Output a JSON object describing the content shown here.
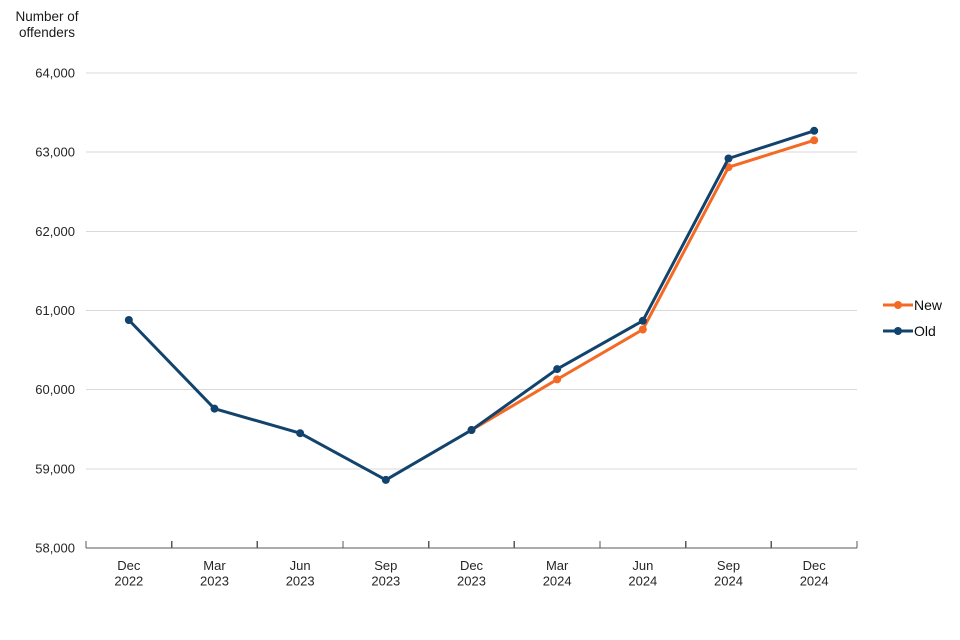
{
  "chart_data": {
    "type": "line",
    "title": "",
    "y_axis_title": "Number of\noffenders",
    "xlabel": "",
    "ylabel": "Number of offenders",
    "categories": [
      "Dec 2022",
      "Mar 2023",
      "Jun 2023",
      "Sep 2023",
      "Dec 2023",
      "Mar 2024",
      "Jun 2024",
      "Sep 2024",
      "Dec 2024"
    ],
    "series": [
      {
        "name": "New",
        "color": "#F46A25",
        "values": [
          null,
          null,
          null,
          null,
          59490,
          60130,
          60760,
          62810,
          63150
        ]
      },
      {
        "name": "Old",
        "color": "#12436D",
        "values": [
          60880,
          59760,
          59450,
          58860,
          59490,
          60260,
          60870,
          62920,
          63270
        ]
      }
    ],
    "y_ticks": [
      {
        "value": 58000,
        "label": "58,000"
      },
      {
        "value": 59000,
        "label": "59,000"
      },
      {
        "value": 60000,
        "label": "60,000"
      },
      {
        "value": 61000,
        "label": "61,000"
      },
      {
        "value": 62000,
        "label": "62,000"
      },
      {
        "value": 63000,
        "label": "63,000"
      },
      {
        "value": 64000,
        "label": "64,000"
      }
    ],
    "ylim": [
      58000,
      64000
    ],
    "grid": "horizontal",
    "legend_position": "right"
  },
  "colors": {
    "gridline": "#D9D9D9",
    "axis": "#595959",
    "tick_text": "#262626",
    "legend_text": "#0B0C0C",
    "background": "#FFFFFF"
  }
}
